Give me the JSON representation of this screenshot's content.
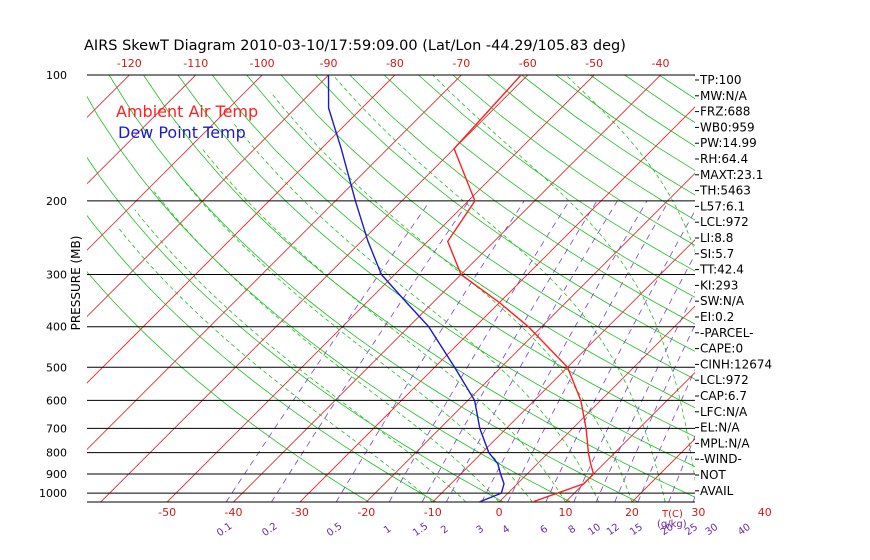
{
  "chart_data": {
    "type": "line",
    "title": "AIRS SkewT Diagram 2010-03-10/17:59:09.00 (Lat/Lon -44.29/105.83 deg)",
    "ylabel": "PRESSURE (MB)",
    "xlabel": "T(C)",
    "mixing_ratio_unit": "(g/kg)",
    "ylim": [
      1050,
      100
    ],
    "top_temp_ticks": [
      "-120",
      "-110",
      "-100",
      "-90",
      "-80",
      "-70",
      "-60",
      "-50",
      "-40"
    ],
    "bottom_temp_ticks": [
      "-50",
      "-40",
      "-30",
      "-20",
      "-10",
      "0",
      "10",
      "20",
      "30",
      "40"
    ],
    "pressure_ticks": [
      "100",
      "200",
      "300",
      "400",
      "500",
      "600",
      "700",
      "800",
      "900",
      "1000"
    ],
    "mixing_ratio_labels": [
      "0.1",
      "0.2",
      "0.5",
      "1",
      "1.5",
      "2",
      "3",
      "4",
      "6",
      "8",
      "10",
      "12",
      "15",
      "20",
      "25",
      "30",
      "40"
    ],
    "legend": [
      {
        "name": "Ambient Air Temp",
        "color": "#ff2020"
      },
      {
        "name": "Dew Point Temp",
        "color": "#1a1acc"
      }
    ],
    "colors": {
      "isotherm": "#e03030",
      "dry_adiabat": "#20c020",
      "moist_adiabat": "#20c020",
      "mixing_ratio": "#7a3fcf",
      "mr_label": "#6a2aa8",
      "tick_label": "#d01a1a",
      "isobar": "#000000"
    },
    "series": [
      {
        "name": "Ambient Air Temp",
        "points": [
          [
            1050,
            5
          ],
          [
            950,
            10
          ],
          [
            900,
            10
          ],
          [
            850,
            8
          ],
          [
            800,
            6
          ],
          [
            700,
            2
          ],
          [
            600,
            -3
          ],
          [
            500,
            -10
          ],
          [
            400,
            -22
          ],
          [
            350,
            -30
          ],
          [
            300,
            -40
          ],
          [
            250,
            -47
          ],
          [
            200,
            -49
          ],
          [
            150,
            -60
          ],
          [
            100,
            -61
          ]
        ]
      },
      {
        "name": "Dew Point Temp",
        "points": [
          [
            1050,
            -3
          ],
          [
            1000,
            -1
          ],
          [
            950,
            -2
          ],
          [
            900,
            -4
          ],
          [
            850,
            -6
          ],
          [
            800,
            -9
          ],
          [
            700,
            -14
          ],
          [
            600,
            -19
          ],
          [
            500,
            -27
          ],
          [
            400,
            -37
          ],
          [
            350,
            -44
          ],
          [
            300,
            -52
          ],
          [
            250,
            -59
          ],
          [
            200,
            -67
          ],
          [
            150,
            -77
          ],
          [
            120,
            -85
          ],
          [
            100,
            -90
          ]
        ]
      }
    ]
  },
  "indices": [
    "TP:100",
    "MW:N/A",
    "FRZ:688",
    "WB0:959",
    "PW:14.99",
    "RH:64.4",
    "MAXT:23.1",
    "TH:5463",
    "L57:6.1",
    "LCL:972",
    "LI:8.8",
    "SI:5.7",
    "TT:42.4",
    "KI:293",
    "SW:N/A",
    "EI:0.2",
    "-PARCEL-",
    "CAPE:0",
    "CINH:12674",
    "LCL:972",
    "CAP:6.7",
    "LFC:N/A",
    "EL:N/A",
    "MPL:N/A",
    "-WIND-",
    "NOT",
    "AVAIL"
  ]
}
